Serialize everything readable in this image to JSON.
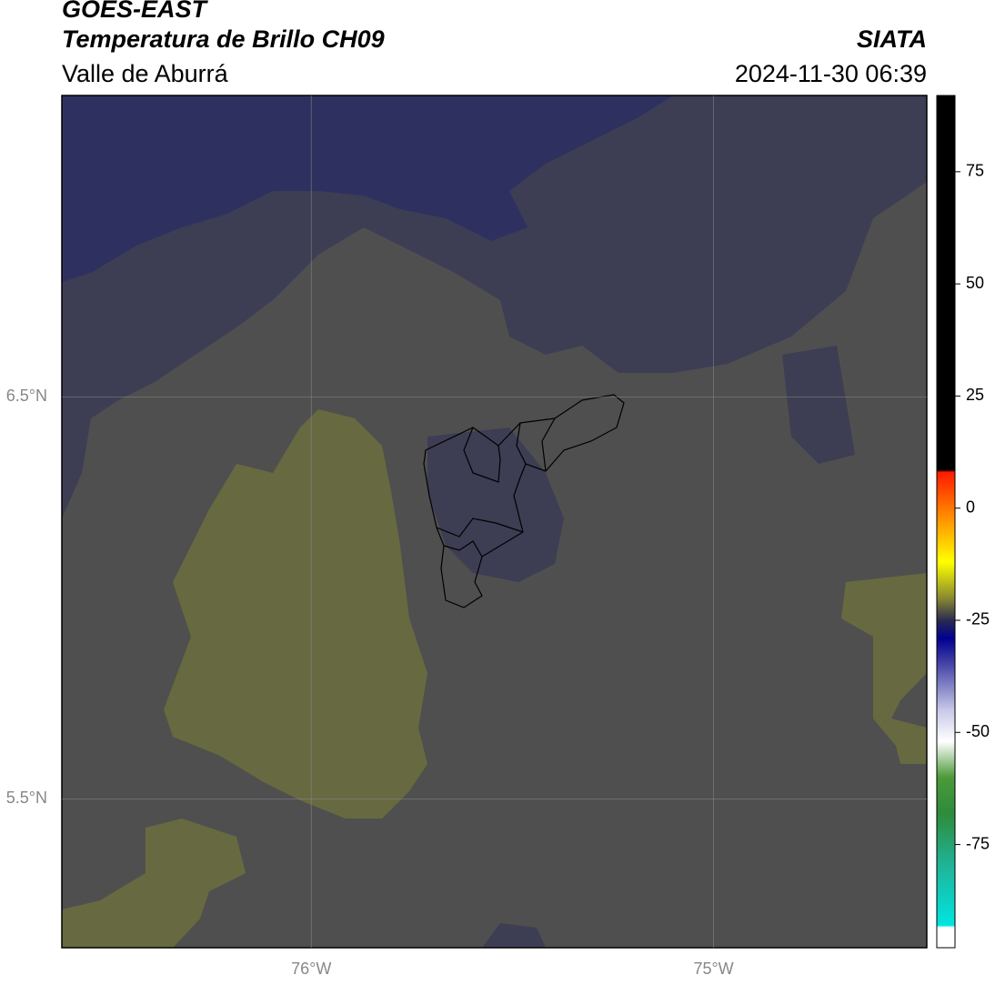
{
  "chart_data": {
    "type": "map",
    "title": "GOES-EAST",
    "subtitle": "Temperatura de Brillo CH09",
    "region": "Valle de Aburrá",
    "source": "SIATA",
    "timestamp": "2024-11-30 06:39",
    "xlim": [
      -76.62,
      -74.47
    ],
    "ylim": [
      5.13,
      7.25
    ],
    "xticks": [
      {
        "value": -76,
        "label": "76°W"
      },
      {
        "value": -75,
        "label": "75°W"
      }
    ],
    "yticks": [
      {
        "value": 6.5,
        "label": "6.5°N"
      },
      {
        "value": 5.5,
        "label": "5.5°N"
      }
    ],
    "grid": true,
    "colorbar": {
      "lim": [
        -98,
        92
      ],
      "ticks": [
        75,
        50,
        25,
        0,
        -25,
        -50,
        -75
      ],
      "colormap": [
        {
          "value": -98,
          "color": "#ffffff"
        },
        {
          "value": -93.5,
          "color": "#ffffff"
        },
        {
          "value": -93,
          "color": "#00e5e0"
        },
        {
          "value": -80,
          "color": "#1fb59a"
        },
        {
          "value": -68,
          "color": "#2e8b3a"
        },
        {
          "value": -60,
          "color": "#4c9a3a"
        },
        {
          "value": -52,
          "color": "#ffffff"
        },
        {
          "value": -45,
          "color": "#c8c8e8"
        },
        {
          "value": -35,
          "color": "#4848a8"
        },
        {
          "value": -29,
          "color": "#000090"
        },
        {
          "value": -25,
          "color": "#2a2a50"
        },
        {
          "value": -20,
          "color": "#8a8a30"
        },
        {
          "value": -12,
          "color": "#ffff00"
        },
        {
          "value": -3,
          "color": "#ff9900"
        },
        {
          "value": 8,
          "color": "#ff1a00"
        },
        {
          "value": 8.5,
          "color": "#000000"
        },
        {
          "value": 92,
          "color": "#000000"
        }
      ]
    }
  }
}
